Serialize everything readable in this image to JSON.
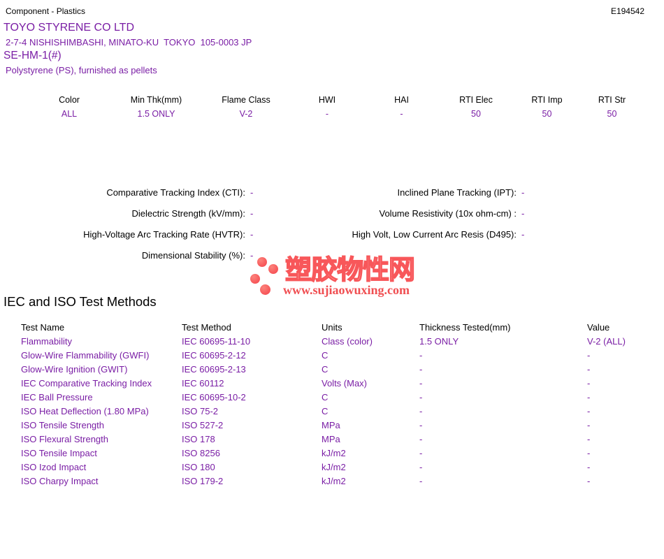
{
  "page": {
    "doc_type": "Component - Plastics",
    "file_number": "E194542"
  },
  "company": {
    "name": "TOYO STYRENE CO LTD",
    "address": "2-7-4 NISHISHIMBASHI, MINATO-KU  TOKYO  105-0003 JP",
    "grade": "SE-HM-1(#)",
    "material": "Polystyrene (PS), furnished as pellets"
  },
  "ratings": {
    "columns": [
      "Color",
      "Min Thk(mm)",
      "Flame Class",
      "HWI",
      "HAI",
      "RTI Elec",
      "RTI Imp",
      "RTI Str"
    ],
    "values": [
      "ALL",
      "1.5 ONLY",
      "V-2",
      "-",
      "-",
      "50",
      "50",
      "50"
    ]
  },
  "electrical": {
    "left": [
      {
        "label": "Comparative Tracking Index (CTI):",
        "value": "-"
      },
      {
        "label": "Dielectric Strength (kV/mm):",
        "value": "-"
      },
      {
        "label": "High-Voltage Arc Tracking Rate (HVTR):",
        "value": "-"
      },
      {
        "label": "Dimensional Stability (%):",
        "value": "-"
      }
    ],
    "right": [
      {
        "label": "Inclined Plane Tracking (IPT):",
        "value": "-"
      },
      {
        "label": "Volume Resistivity (10x ohm-cm) :",
        "value": "-"
      },
      {
        "label": "High Volt, Low Current Arc Resis (D495):",
        "value": "-"
      }
    ]
  },
  "watermark": {
    "cn_text": "塑胶物性网",
    "url_text": "www.sujiaowuxing.com",
    "dot_color": "#f8575a",
    "text_color": "#f04f52"
  },
  "test_methods": {
    "heading": "IEC and ISO Test Methods",
    "columns": [
      "Test Name",
      "Test Method",
      "Units",
      "Thickness Tested(mm)",
      "Value"
    ],
    "rows": [
      [
        "Flammability",
        "IEC 60695-11-10",
        "Class (color)",
        "1.5 ONLY",
        "V-2 (ALL)"
      ],
      [
        "Glow-Wire Flammability (GWFI)",
        "IEC 60695-2-12",
        "C",
        "-",
        "-"
      ],
      [
        "Glow-Wire Ignition (GWIT)",
        "IEC 60695-2-13",
        "C",
        "-",
        "-"
      ],
      [
        "IEC Comparative Tracking Index",
        "IEC 60112",
        "Volts (Max)",
        "-",
        "-"
      ],
      [
        "IEC Ball Pressure",
        "IEC 60695-10-2",
        "C",
        "-",
        "-"
      ],
      [
        "ISO Heat Deflection (1.80 MPa)",
        "ISO 75-2",
        "C",
        "-",
        "-"
      ],
      [
        "ISO Tensile Strength",
        "ISO 527-2",
        "MPa",
        "-",
        "-"
      ],
      [
        "ISO Flexural Strength",
        "ISO 178",
        "MPa",
        "-",
        "-"
      ],
      [
        "ISO Tensile Impact",
        "ISO 8256",
        "kJ/m2",
        "-",
        "-"
      ],
      [
        "ISO Izod Impact",
        "ISO 180",
        "kJ/m2",
        "-",
        "-"
      ],
      [
        "ISO Charpy Impact",
        "ISO 179-2",
        "kJ/m2",
        "-",
        "-"
      ]
    ]
  },
  "colors": {
    "accent_purple": "#7a1ea5",
    "text_black": "#000000",
    "logo_red": "#f8575a"
  }
}
